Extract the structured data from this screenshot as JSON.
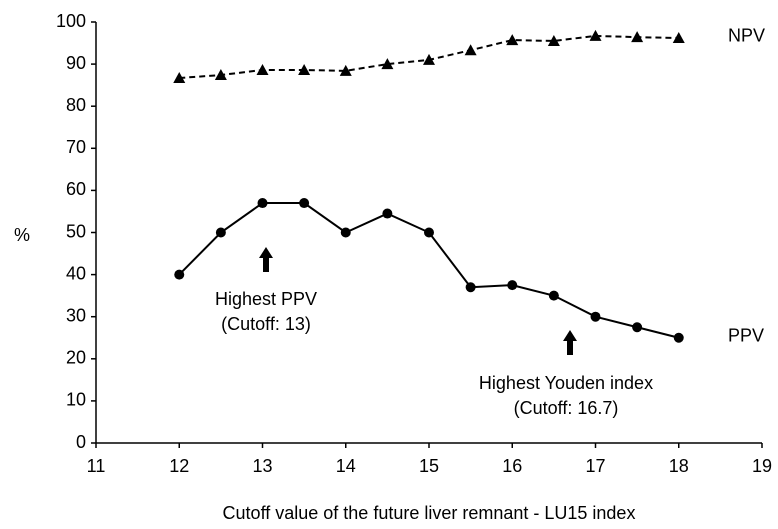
{
  "chart_data": {
    "type": "line",
    "x_label": "Cutoff value of the future liver remnant - LU15 index",
    "y_label": "%",
    "x": [
      12,
      12.5,
      13,
      13.5,
      14,
      14.5,
      15,
      15.5,
      16,
      16.5,
      17,
      17.5,
      18
    ],
    "series": [
      {
        "name": "NPV",
        "color": "#000000",
        "marker": "triangle",
        "dashed": true,
        "values": [
          86.7,
          87.4,
          88.6,
          88.6,
          88.4,
          90,
          91,
          93.3,
          95.7,
          95.5,
          96.7,
          96.4,
          96.2
        ]
      },
      {
        "name": "PPV",
        "color": "#000000",
        "marker": "circle",
        "dashed": false,
        "values": [
          40,
          50,
          57,
          57,
          50,
          54.5,
          50,
          37,
          37.5,
          35,
          30,
          27.5,
          25
        ]
      }
    ],
    "annotations": [
      "Highest PPV",
      "(Cutoff: 13)",
      "Highest Youden index",
      "(Cutoff: 16.7)"
    ],
    "xlim": [
      11,
      19
    ],
    "xticks": [
      11,
      12,
      13,
      14,
      15,
      16,
      17,
      18,
      19
    ],
    "ylim": [
      0,
      100
    ],
    "yticks": [
      0,
      10,
      20,
      30,
      40,
      50,
      60,
      70,
      80,
      90,
      100
    ],
    "grid": false
  }
}
